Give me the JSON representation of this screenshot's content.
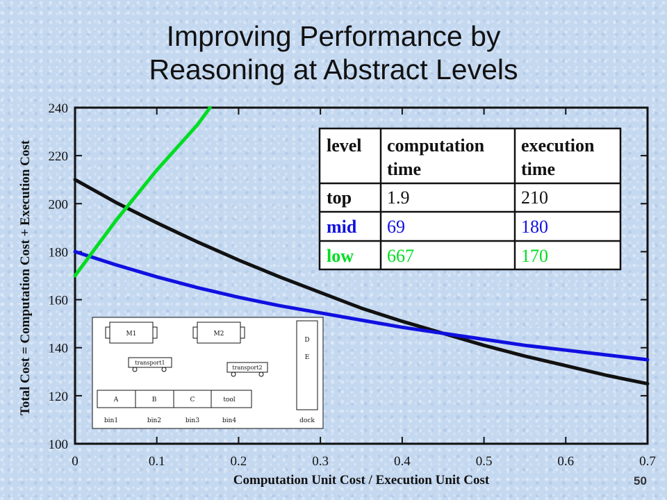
{
  "title_lines": [
    "Improving Performance by",
    "Reasoning at Abstract Levels"
  ],
  "slide_number": "50",
  "chart_data": {
    "type": "line",
    "xlabel": "Computation Unit Cost / Execution Unit Cost",
    "ylabel": "Total Cost = Computation Cost + Execution Cost",
    "xlim": [
      0,
      0.7
    ],
    "ylim": [
      100,
      240
    ],
    "x_ticks": [
      "0",
      "0.1",
      "0.2",
      "0.3",
      "0.4",
      "0.5",
      "0.6",
      "0.7"
    ],
    "y_ticks": [
      "100",
      "120",
      "140",
      "160",
      "180",
      "200",
      "220",
      "240"
    ],
    "grid": false,
    "series": [
      {
        "color": "#00dd22",
        "x": [
          0,
          0.05,
          0.1,
          0.15,
          0.165
        ],
        "y": [
          170,
          193,
          214,
          233,
          240
        ]
      },
      {
        "color": "#111111",
        "x": [
          0,
          0.05,
          0.1,
          0.15,
          0.2,
          0.25,
          0.3,
          0.35,
          0.4,
          0.45,
          0.5,
          0.55,
          0.6,
          0.65,
          0.7
        ],
        "y": [
          210,
          200.5,
          192,
          184,
          176.5,
          169.5,
          163,
          156.5,
          151,
          146,
          141,
          136.5,
          132.5,
          128.5,
          125
        ]
      },
      {
        "color": "#1010e0",
        "x": [
          0,
          0.05,
          0.1,
          0.15,
          0.2,
          0.25,
          0.3,
          0.35,
          0.4,
          0.45,
          0.5,
          0.55,
          0.6,
          0.65,
          0.7
        ],
        "y": [
          180,
          174.5,
          169.5,
          165,
          161,
          157.5,
          154.5,
          151.5,
          148.5,
          146,
          143.5,
          141,
          139,
          137,
          135
        ]
      }
    ],
    "table": {
      "header": [
        "level",
        "computation time",
        "execution time"
      ],
      "rows": [
        {
          "level": "top",
          "computation": "1.9",
          "execution": "210",
          "color": "#111111"
        },
        {
          "level": "mid",
          "computation": "69",
          "execution": "180",
          "color": "#1010e0"
        },
        {
          "level": "low",
          "computation": "667",
          "execution": "170",
          "color": "#00dd22"
        }
      ]
    },
    "inset_diagram": {
      "machines": [
        "M1",
        "M2"
      ],
      "transports": [
        "transport1",
        "transport2"
      ],
      "bin_contents": [
        "A",
        "B",
        "C",
        "tool"
      ],
      "bins": [
        "bin1",
        "bin2",
        "bin3",
        "bin4"
      ],
      "dock_letters": [
        "D",
        "E"
      ],
      "dock": "dock"
    }
  }
}
